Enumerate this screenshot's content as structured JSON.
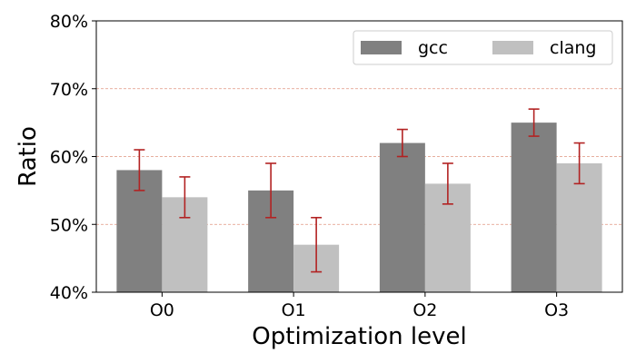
{
  "chart_data": {
    "type": "bar",
    "xlabel": "Optimization level",
    "ylabel": "Ratio",
    "categories": [
      "O0",
      "O1",
      "O2",
      "O3"
    ],
    "ylim": [
      40,
      80
    ],
    "yticks": [
      40,
      50,
      60,
      70,
      80
    ],
    "ytick_labels": [
      "40%",
      "50%",
      "60%",
      "70%",
      "80%"
    ],
    "grid": "horizontal dashed",
    "legend_position": "top-right",
    "series": [
      {
        "name": "gcc",
        "color": "#808080",
        "values": [
          58,
          55,
          62,
          65
        ],
        "err_low": [
          55,
          51,
          60,
          63
        ],
        "err_high": [
          61,
          59,
          64,
          67
        ]
      },
      {
        "name": "clang",
        "color": "#c0c0c0",
        "values": [
          54,
          47,
          56,
          59
        ],
        "err_low": [
          51,
          43,
          53,
          56
        ],
        "err_high": [
          57,
          51,
          59,
          62
        ]
      }
    ],
    "error_bar_color": "#b22222",
    "grid_color": "#e0957f"
  }
}
